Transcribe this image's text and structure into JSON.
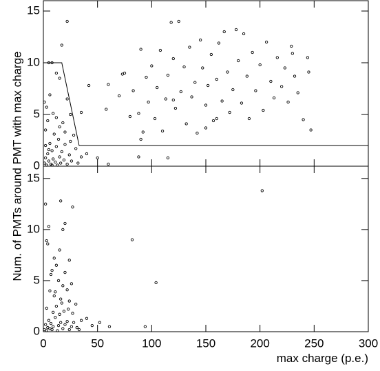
{
  "chart_data": [
    {
      "type": "scatter",
      "color": "#000000",
      "y_label": "Num. of PMTs around PMT with max charge",
      "xlim": [
        0,
        300
      ],
      "ylim": [
        0,
        16
      ],
      "yticks": [
        0,
        5,
        10,
        15
      ],
      "x": [
        22,
        17,
        5,
        8,
        12,
        15,
        22,
        25,
        35,
        42,
        58,
        60,
        70,
        73,
        75,
        80,
        83,
        88,
        90,
        92,
        95,
        97,
        100,
        103,
        105,
        108,
        110,
        113,
        115,
        118,
        120,
        122,
        125,
        127,
        130,
        132,
        135,
        137,
        140,
        142,
        145,
        147,
        150,
        152,
        155,
        157,
        160,
        162,
        165,
        167,
        170,
        172,
        175,
        178,
        180,
        183,
        185,
        188,
        190,
        193,
        196,
        200,
        203,
        206,
        210,
        213,
        216,
        220,
        223,
        226,
        229,
        232,
        235,
        240,
        244,
        247,
        245,
        230,
        150,
        160,
        120,
        90,
        115,
        88,
        60,
        40,
        50,
        1,
        2,
        3,
        4,
        5,
        6,
        7,
        8,
        9,
        10,
        11,
        12,
        13,
        14,
        15,
        16,
        17,
        18,
        19,
        20,
        22,
        24,
        26,
        28,
        30,
        32,
        35,
        2,
        3,
        1,
        4,
        6,
        9,
        12,
        15,
        20,
        25,
        2,
        5,
        8
      ],
      "y": [
        14,
        11.7,
        10,
        10,
        9,
        8.5,
        6.5,
        5,
        5.2,
        7.8,
        5.5,
        7.9,
        6.8,
        8.9,
        9,
        4.8,
        7.3,
        5.1,
        11.3,
        3.3,
        8.6,
        6.2,
        9.7,
        4.6,
        7.6,
        11.2,
        3.4,
        6.5,
        8.8,
        13.9,
        10.4,
        5.6,
        14,
        7.2,
        9.6,
        4.1,
        11.5,
        6.7,
        8.1,
        3.2,
        12.2,
        9.5,
        5.9,
        7.8,
        10.8,
        4.4,
        8.4,
        11.9,
        6.3,
        13,
        9.1,
        5.2,
        7.4,
        13.2,
        10.2,
        6.1,
        12.8,
        8.7,
        4.6,
        11,
        7.3,
        9.8,
        5.4,
        12,
        8.2,
        6.6,
        10.5,
        7.7,
        9.5,
        6.2,
        11.6,
        8.7,
        7.1,
        4.5,
        10.5,
        3.5,
        9.1,
        10.9,
        3.7,
        4.6,
        6.4,
        2.6,
        0.8,
        0.9,
        0.2,
        1.2,
        0.8,
        0.3,
        0.8,
        0.1,
        1.2,
        0.5,
        2.2,
        0.2,
        1.5,
        0.7,
        3.1,
        0.4,
        1.9,
        0.1,
        2.6,
        0.9,
        0.3,
        1.4,
        4.2,
        0.6,
        2.1,
        0.2,
        1.1,
        0.5,
        3,
        1.7,
        0.3,
        0.9,
        3.5,
        5.7,
        6.2,
        4.4,
        6.9,
        5.1,
        4.7,
        3.8,
        3.3,
        2.4,
        2,
        1.6,
        0.1
      ],
      "cut_line": {
        "x": [
          0,
          17,
          33,
          300
        ],
        "y": [
          10,
          10,
          2,
          2
        ]
      }
    },
    {
      "type": "scatter",
      "color": "#000000",
      "x_label": "max charge (p.e.)",
      "xlim": [
        0,
        300
      ],
      "ylim": [
        0,
        16.2
      ],
      "xticks": [
        0,
        50,
        100,
        150,
        200,
        250,
        300
      ],
      "yticks": [
        0,
        5,
        10,
        15
      ],
      "x": [
        202,
        16,
        27,
        2,
        5,
        20,
        18,
        82,
        3,
        4,
        10,
        15,
        24,
        12,
        8,
        20,
        7,
        26,
        104,
        14,
        18,
        22,
        6,
        10,
        16,
        24,
        30,
        12,
        3,
        19,
        27,
        9,
        40,
        52,
        35,
        45,
        61,
        94,
        1,
        2,
        3,
        4,
        5,
        6,
        7,
        8,
        9,
        11,
        13,
        14,
        16,
        18,
        20,
        22,
        24,
        26,
        28,
        31,
        33,
        15,
        17,
        11,
        23
      ],
      "y": [
        13.8,
        12.8,
        12.2,
        12.5,
        10.3,
        10.6,
        10,
        9,
        8.9,
        8.6,
        7.2,
        8,
        7,
        6.5,
        6,
        5.8,
        5.6,
        4.7,
        4.8,
        5,
        4.5,
        4.1,
        4,
        3.5,
        3.2,
        3,
        2.7,
        2.5,
        2.3,
        2,
        1.8,
        1.9,
        1.3,
        0.9,
        1.1,
        0.6,
        0.5,
        0.5,
        0.2,
        0.7,
        0.1,
        0.4,
        1.1,
        0.3,
        0.8,
        0.2,
        0.5,
        1.4,
        0.1,
        0.6,
        0.9,
        0.3,
        0.7,
        1,
        0.2,
        0.5,
        0.9,
        0.4,
        0.2,
        1.7,
        2.8,
        3.9,
        2.2
      ]
    }
  ]
}
